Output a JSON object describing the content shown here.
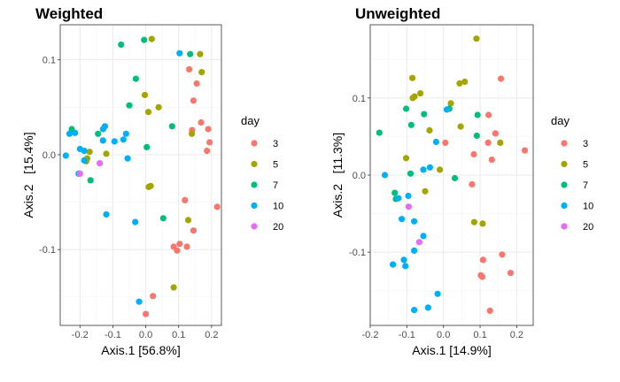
{
  "chart_data": [
    {
      "type": "scatter",
      "title": "Weighted",
      "xlabel": "Axis.1   [56.8%]",
      "ylabel": "Axis.2   [15.4%]",
      "xlim": [
        -0.26,
        0.23
      ],
      "ylim": [
        -0.18,
        0.137
      ],
      "xticks": [
        -0.2,
        -0.1,
        0.0,
        0.1,
        0.2
      ],
      "xtick_labels": [
        "-0.2",
        "-0.1",
        "0.0",
        "0.1",
        "0.2"
      ],
      "yticks": [
        -0.1,
        0.0,
        0.1
      ],
      "ytick_labels": [
        "-0.1",
        "0.0",
        "0.1"
      ],
      "grid": true,
      "legend_title": "day",
      "legend_position": "right",
      "series": [
        {
          "name": "3",
          "color": "#F8766D",
          "points": [
            [
              0.132,
              0.09
            ],
            [
              0.155,
              0.075
            ],
            [
              0.145,
              0.057
            ],
            [
              0.168,
              0.034
            ],
            [
              0.194,
              0.013
            ],
            [
              0.186,
              0.004
            ],
            [
              0.141,
              0.026
            ],
            [
              0.19,
              0.027
            ],
            [
              0.119,
              -0.048
            ],
            [
              0.145,
              -0.08
            ],
            [
              0.217,
              -0.055
            ],
            [
              0.085,
              -0.097
            ],
            [
              0.095,
              -0.101
            ],
            [
              0.103,
              -0.094
            ],
            [
              0.125,
              -0.097
            ],
            [
              0.022,
              -0.149
            ],
            [
              0.0,
              -0.168
            ]
          ]
        },
        {
          "name": "5",
          "color": "#A3A500",
          "points": [
            [
              0.018,
              0.122
            ],
            [
              0.165,
              0.106
            ],
            [
              0.17,
              0.087
            ],
            [
              -0.003,
              0.063
            ],
            [
              0.039,
              0.05
            ],
            [
              0.008,
              0.045
            ],
            [
              0.14,
              0.022
            ],
            [
              -0.178,
              -0.004
            ],
            [
              -0.181,
              -0.007
            ],
            [
              -0.171,
              0.003
            ],
            [
              -0.12,
              0.001
            ],
            [
              0.009,
              -0.034
            ],
            [
              0.015,
              -0.033
            ],
            [
              0.129,
              -0.069
            ],
            [
              0.085,
              -0.14
            ]
          ]
        },
        {
          "name": "7",
          "color": "#00BF7D",
          "points": [
            [
              -0.075,
              0.116
            ],
            [
              -0.005,
              0.121
            ],
            [
              0.135,
              0.106
            ],
            [
              -0.03,
              0.08
            ],
            [
              -0.05,
              0.052
            ],
            [
              -0.225,
              0.027
            ],
            [
              -0.145,
              0.022
            ],
            [
              -0.168,
              -0.027
            ],
            [
              0.08,
              0.03
            ],
            [
              0.003,
              0.008
            ],
            [
              0.053,
              -0.067
            ]
          ]
        },
        {
          "name": "10",
          "color": "#00B0F6",
          "points": [
            [
              0.103,
              0.107
            ],
            [
              -0.215,
              0.023
            ],
            [
              -0.232,
              0.022
            ],
            [
              -0.243,
              -0.001
            ],
            [
              -0.2,
              0.006
            ],
            [
              -0.187,
              0.004
            ],
            [
              -0.187,
              -0.006
            ],
            [
              -0.204,
              -0.02
            ],
            [
              -0.13,
              0.027
            ],
            [
              -0.124,
              0.03
            ],
            [
              -0.13,
              0.015
            ],
            [
              -0.095,
              0.014
            ],
            [
              -0.068,
              0.016
            ],
            [
              -0.06,
              0.022
            ],
            [
              -0.055,
              -0.004
            ],
            [
              -0.032,
              -0.071
            ],
            [
              -0.12,
              -0.063
            ],
            [
              -0.02,
              -0.155
            ]
          ]
        },
        {
          "name": "20",
          "color": "#E76BF3",
          "points": [
            [
              -0.2,
              -0.02
            ],
            [
              -0.14,
              -0.009
            ]
          ]
        }
      ]
    },
    {
      "type": "scatter",
      "title": "Unweighted",
      "xlabel": "Axis.1   [14.9%]",
      "ylabel": "Axis.2   [11.3%]",
      "xlim": [
        -0.2,
        0.245
      ],
      "ylim": [
        -0.195,
        0.195
      ],
      "xticks": [
        -0.2,
        -0.1,
        0.0,
        0.1,
        0.2
      ],
      "xtick_labels": [
        "-0.2",
        "-0.1",
        "0.0",
        "0.1",
        "0.2"
      ],
      "yticks": [
        -0.1,
        0.0,
        0.1
      ],
      "ytick_labels": [
        "-0.1",
        "0.0",
        "0.1"
      ],
      "grid": true,
      "legend_title": "day",
      "legend_position": "right",
      "series": [
        {
          "name": "3",
          "color": "#F8766D",
          "points": [
            [
              0.157,
              0.125
            ],
            [
              0.123,
              0.078
            ],
            [
              0.142,
              0.054
            ],
            [
              0.122,
              0.042
            ],
            [
              0.005,
              0.042
            ],
            [
              0.083,
              0.027
            ],
            [
              0.132,
              0.02
            ],
            [
              0.222,
              0.032
            ],
            [
              0.078,
              -0.012
            ],
            [
              0.16,
              -0.103
            ],
            [
              0.108,
              -0.11
            ],
            [
              0.102,
              -0.13
            ],
            [
              0.106,
              -0.132
            ],
            [
              0.183,
              -0.127
            ],
            [
              0.127,
              -0.176
            ]
          ]
        },
        {
          "name": "5",
          "color": "#A3A500",
          "points": [
            [
              0.09,
              0.177
            ],
            [
              -0.085,
              0.126
            ],
            [
              -0.079,
              0.102
            ],
            [
              -0.084,
              0.1
            ],
            [
              -0.063,
              0.106
            ],
            [
              0.044,
              0.119
            ],
            [
              0.058,
              0.121
            ],
            [
              0.02,
              0.093
            ],
            [
              -0.038,
              0.058
            ],
            [
              -0.01,
              0.007
            ],
            [
              -0.102,
              0.022
            ],
            [
              -0.05,
              -0.021
            ],
            [
              0.084,
              -0.061
            ],
            [
              0.107,
              -0.063
            ],
            [
              0.047,
              0.063
            ],
            [
              0.155,
              0.042
            ]
          ]
        },
        {
          "name": "7",
          "color": "#00BF7D",
          "points": [
            [
              -0.175,
              0.055
            ],
            [
              -0.102,
              0.086
            ],
            [
              -0.088,
              0.065
            ],
            [
              -0.053,
              0.079
            ],
            [
              0.016,
              0.086
            ],
            [
              0.093,
              0.078
            ],
            [
              0.091,
              0.051
            ],
            [
              -0.133,
              -0.023
            ],
            [
              -0.13,
              -0.031
            ],
            [
              -0.09,
              0.002
            ],
            [
              0.031,
              -0.004
            ]
          ]
        },
        {
          "name": "10",
          "color": "#00B0F6",
          "points": [
            [
              0.009,
              0.085
            ],
            [
              -0.02,
              0.043
            ],
            [
              -0.16,
              0.0
            ],
            [
              -0.123,
              -0.03
            ],
            [
              -0.096,
              -0.027
            ],
            [
              -0.055,
              0.007
            ],
            [
              -0.037,
              0.01
            ],
            [
              -0.114,
              -0.057
            ],
            [
              -0.08,
              -0.06
            ],
            [
              -0.055,
              -0.079
            ],
            [
              -0.138,
              -0.116
            ],
            [
              -0.108,
              -0.11
            ],
            [
              -0.104,
              -0.118
            ],
            [
              -0.08,
              -0.098
            ],
            [
              -0.016,
              -0.154
            ],
            [
              -0.042,
              -0.172
            ],
            [
              -0.08,
              -0.175
            ]
          ]
        },
        {
          "name": "20",
          "color": "#E76BF3",
          "points": [
            [
              -0.095,
              -0.041
            ],
            [
              -0.066,
              -0.087
            ]
          ]
        }
      ]
    }
  ]
}
